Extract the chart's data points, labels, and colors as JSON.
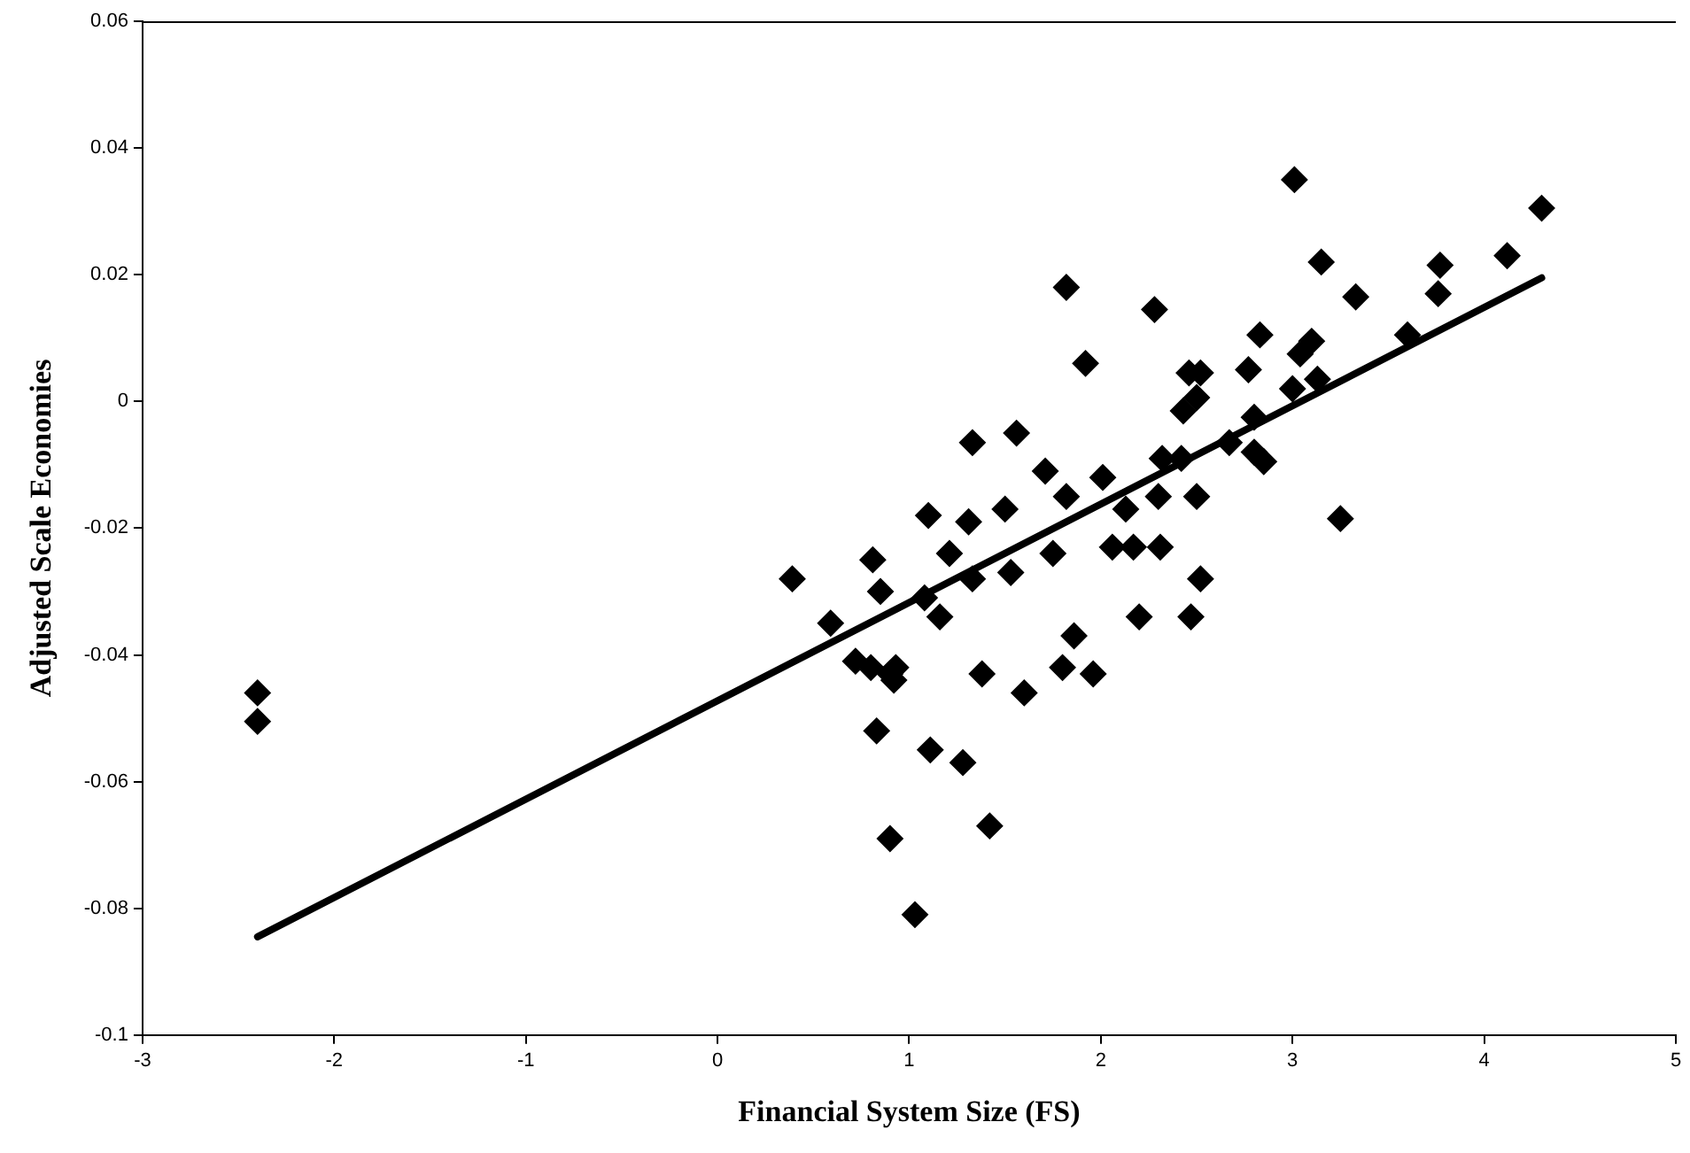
{
  "chart_data": {
    "type": "scatter",
    "xlabel": "Financial System Size (FS)",
    "ylabel": "Adjusted Scale Economies",
    "xlim": [
      -3,
      5
    ],
    "xticks": [
      -3,
      -2,
      -1,
      0,
      1,
      2,
      3,
      4,
      5
    ],
    "ylim": [
      -0.1,
      0.06
    ],
    "yticks": [
      -0.1,
      -0.08,
      -0.06,
      -0.04,
      -0.02,
      0,
      0.02,
      0.04,
      0.06
    ],
    "grid": false,
    "legend": false,
    "marker": "diamond",
    "series": [
      {
        "color": "#000000",
        "x": [
          -2.4,
          -2.4,
          0.39,
          0.59,
          0.72,
          0.8,
          0.81,
          0.85,
          0.9,
          0.92,
          0.93,
          0.83,
          0.9,
          1.03,
          1.1,
          1.08,
          1.16,
          1.21,
          1.11,
          1.28,
          1.33,
          1.31,
          1.33,
          1.38,
          1.42,
          1.56,
          1.5,
          1.53,
          1.6,
          1.71,
          1.75,
          1.82,
          1.82,
          1.86,
          1.8,
          1.92,
          1.96,
          2.01,
          2.06,
          2.13,
          2.17,
          2.2,
          2.28,
          2.3,
          2.31,
          2.32,
          2.42,
          2.43,
          2.46,
          2.52,
          2.5,
          2.5,
          2.52,
          2.47,
          2.67,
          2.77,
          2.83,
          2.8,
          2.8,
          2.85,
          3.01,
          3.0,
          3.04,
          3.1,
          3.13,
          3.15,
          3.25,
          3.33,
          3.6,
          3.76,
          3.77,
          4.12,
          4.3
        ],
        "values": [
          -0.046,
          -0.0505,
          -0.028,
          -0.035,
          -0.041,
          -0.042,
          -0.025,
          -0.03,
          -0.043,
          -0.044,
          -0.042,
          -0.052,
          -0.069,
          -0.081,
          -0.018,
          -0.031,
          -0.034,
          -0.024,
          -0.055,
          -0.057,
          -0.0065,
          -0.019,
          -0.028,
          -0.043,
          -0.067,
          -0.005,
          -0.017,
          -0.027,
          -0.046,
          -0.011,
          -0.024,
          0.018,
          -0.015,
          -0.037,
          -0.042,
          0.006,
          -0.043,
          -0.012,
          -0.023,
          -0.017,
          -0.023,
          -0.034,
          0.0145,
          -0.015,
          -0.023,
          -0.009,
          -0.009,
          -0.0015,
          0.0045,
          0.0045,
          0.0006,
          -0.015,
          -0.028,
          -0.034,
          -0.0065,
          0.005,
          0.0105,
          -0.0025,
          -0.008,
          -0.0095,
          0.035,
          0.002,
          0.0075,
          0.0095,
          0.0035,
          0.022,
          -0.0185,
          0.0165,
          0.0105,
          0.017,
          0.0215,
          0.023,
          0.0305
        ]
      },
      {
        "type": "line",
        "color": "#000000",
        "marker": "none",
        "x": [
          -2.4,
          4.3
        ],
        "values": [
          -0.0845,
          0.0195
        ]
      }
    ]
  }
}
